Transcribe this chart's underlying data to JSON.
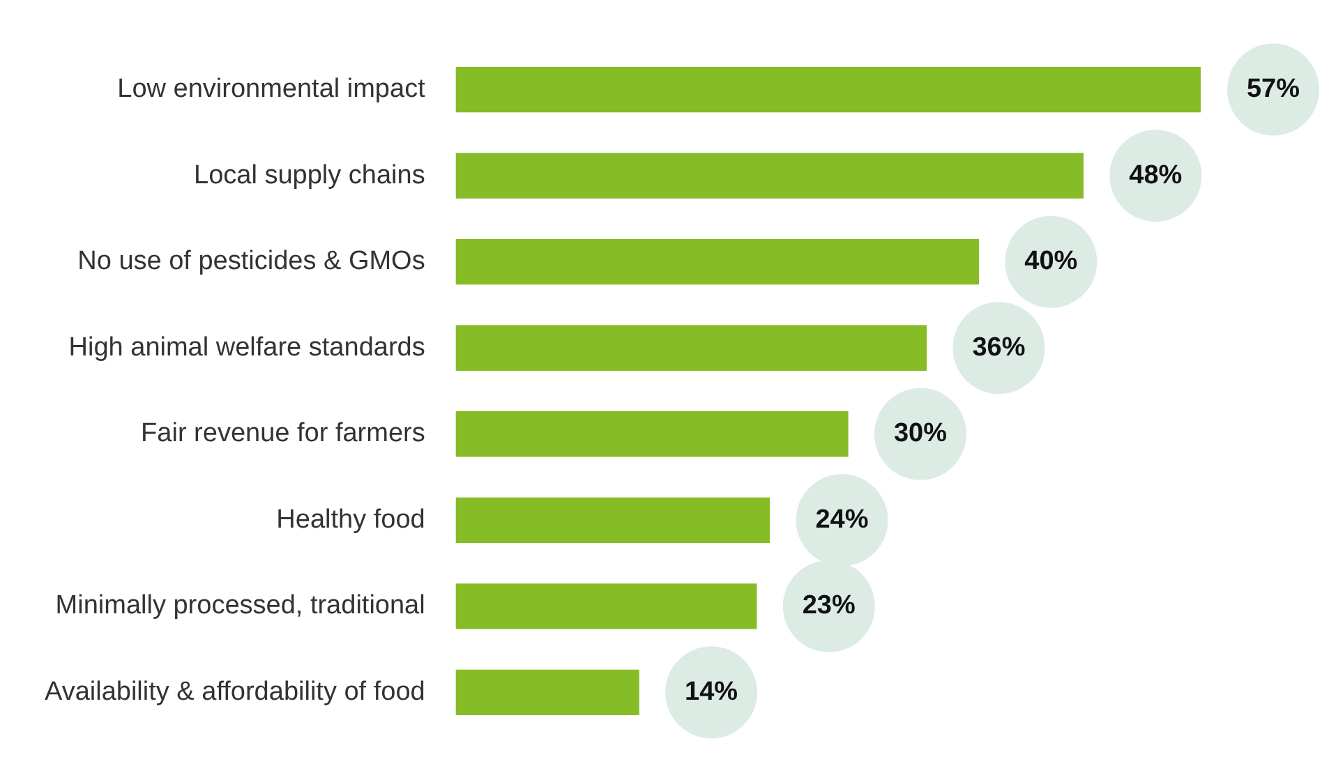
{
  "chart_data": {
    "type": "bar",
    "orientation": "horizontal",
    "categories": [
      "Low environmental impact",
      "Local supply chains",
      "No use of pesticides & GMOs",
      "High animal welfare standards",
      "Fair revenue for farmers",
      "Healthy food",
      "Minimally processed, traditional",
      "Availability & affordability of food"
    ],
    "series": [
      {
        "color": "#86bc25",
        "values": [
          57,
          48,
          40,
          36,
          30,
          24,
          23,
          14
        ],
        "value_labels": [
          "57%",
          "48%",
          "40%",
          "36%",
          "30%",
          "24%",
          "23%",
          "14%"
        ]
      }
    ],
    "grid": false,
    "legend": false,
    "tick_labels": "y"
  }
}
